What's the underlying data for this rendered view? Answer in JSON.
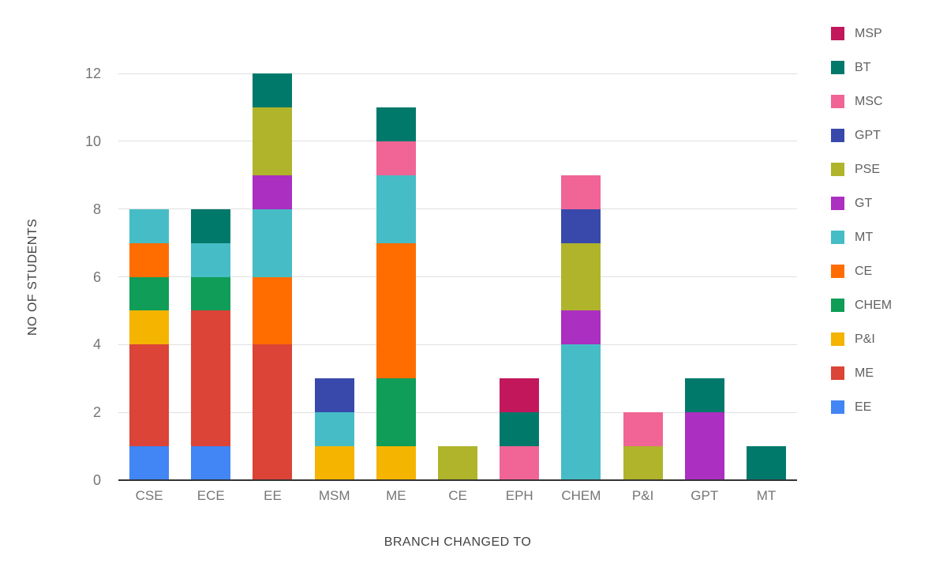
{
  "chart_data": {
    "type": "bar",
    "stacked": true,
    "title": "",
    "xlabel": "BRANCH CHANGED TO",
    "ylabel": "NO OF STUDENTS",
    "ylim": [
      0,
      12
    ],
    "yticks": [
      0,
      2,
      4,
      6,
      8,
      10,
      12
    ],
    "grid": true,
    "legend_position": "right",
    "categories": [
      "CSE",
      "ECE",
      "EE",
      "MSM",
      "ME",
      "CE",
      "EPH",
      "CHEM",
      "P&I",
      "GPT",
      "MT"
    ],
    "series": [
      {
        "name": "EE",
        "color": "#4285F4",
        "values": [
          1,
          1,
          0,
          0,
          0,
          0,
          0,
          0,
          0,
          0,
          0
        ]
      },
      {
        "name": "ME",
        "color": "#DB4437",
        "values": [
          3,
          4,
          4,
          0,
          0,
          0,
          0,
          0,
          0,
          0,
          0
        ]
      },
      {
        "name": "P&I",
        "color": "#F4B400",
        "values": [
          1,
          0,
          0,
          1,
          1,
          0,
          0,
          0,
          0,
          0,
          0
        ]
      },
      {
        "name": "CHEM",
        "color": "#0F9D58",
        "values": [
          1,
          1,
          0,
          0,
          2,
          0,
          0,
          0,
          0,
          0,
          0
        ]
      },
      {
        "name": "CE",
        "color": "#FF6D00",
        "values": [
          1,
          0,
          2,
          0,
          4,
          0,
          0,
          0,
          0,
          0,
          0
        ]
      },
      {
        "name": "MT",
        "color": "#46BDC6",
        "values": [
          1,
          1,
          2,
          1,
          2,
          0,
          0,
          4,
          0,
          0,
          0
        ]
      },
      {
        "name": "GT",
        "color": "#AB2FC0",
        "values": [
          0,
          0,
          1,
          0,
          0,
          0,
          0,
          1,
          0,
          2,
          0
        ]
      },
      {
        "name": "PSE",
        "color": "#AFB42B",
        "values": [
          0,
          0,
          2,
          0,
          0,
          1,
          0,
          2,
          1,
          0,
          0
        ]
      },
      {
        "name": "GPT",
        "color": "#3949AB",
        "values": [
          0,
          0,
          0,
          1,
          0,
          0,
          0,
          1,
          0,
          0,
          0
        ]
      },
      {
        "name": "MSC",
        "color": "#F06595",
        "values": [
          0,
          0,
          0,
          0,
          1,
          0,
          1,
          1,
          1,
          0,
          0
        ]
      },
      {
        "name": "BT",
        "color": "#00796B",
        "values": [
          0,
          1,
          1,
          0,
          1,
          0,
          1,
          0,
          0,
          1,
          1
        ]
      },
      {
        "name": "MSP",
        "color": "#C2185B",
        "values": [
          0,
          0,
          0,
          0,
          0,
          0,
          1,
          0,
          0,
          0,
          0
        ]
      }
    ],
    "legend_order": [
      "MSP",
      "BT",
      "MSC",
      "GPT",
      "PSE",
      "GT",
      "MT",
      "CE",
      "CHEM",
      "P&I",
      "ME",
      "EE"
    ]
  }
}
